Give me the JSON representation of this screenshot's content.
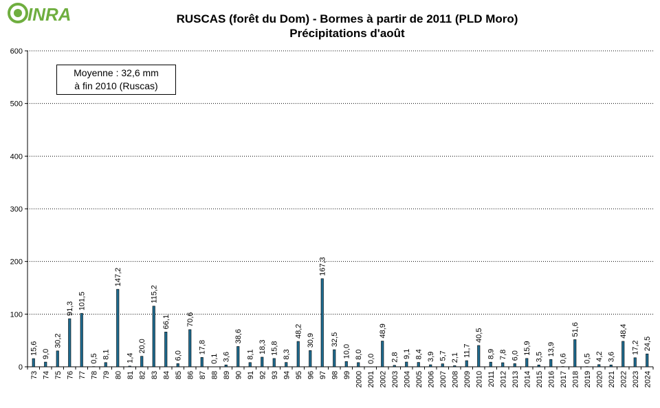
{
  "logo": {
    "text": "INRA",
    "colors": {
      "green": "#6fae3f",
      "dark": "#2b6a2f"
    }
  },
  "title_line1": "RUSCAS (forêt du Dom) - Bormes à partir de 2011 (PLD Moro)",
  "title_line2": "Précipitations d'août",
  "annotation": {
    "line1": "Moyenne : 32,6 mm",
    "line2": "à fin 2010 (Ruscas)"
  },
  "colors": {
    "bar_fill": "#1f6b8f",
    "bar_stroke": "#000000",
    "grid": "#000000"
  },
  "chart_data": {
    "type": "bar",
    "title": "RUSCAS (forêt du Dom) - Bormes à partir de 2011 (PLD Moro) / Précipitations d'août",
    "xlabel": "",
    "ylabel": "",
    "ylim": [
      0,
      600
    ],
    "yticks": [
      "0",
      "100",
      "200",
      "300",
      "400",
      "500",
      "600"
    ],
    "grid": true,
    "categories": [
      "73",
      "74",
      "75",
      "76",
      "77",
      "78",
      "79",
      "80",
      "81",
      "82",
      "83",
      "84",
      "85",
      "86",
      "87",
      "88",
      "89",
      "90",
      "91",
      "92",
      "93",
      "94",
      "95",
      "96",
      "97",
      "98",
      "99",
      "2000",
      "2001",
      "2002",
      "2003",
      "2004",
      "2005",
      "2006",
      "2007",
      "2008",
      "2009",
      "2010",
      "2011",
      "2012",
      "2013",
      "2014",
      "2015",
      "2016",
      "2017",
      "2018",
      "2019",
      "2020",
      "2021",
      "2022",
      "2023",
      "2024"
    ],
    "values": [
      15.6,
      9.0,
      30.2,
      91.3,
      101.5,
      0.5,
      8.1,
      147.2,
      1.4,
      20.0,
      115.2,
      66.1,
      6.0,
      70.6,
      17.8,
      0.1,
      3.6,
      38.6,
      8.1,
      18.3,
      15.8,
      8.3,
      48.2,
      30.9,
      167.3,
      32.5,
      10.0,
      8.0,
      0.0,
      48.9,
      2.8,
      9.1,
      8.4,
      3.9,
      5.7,
      2.1,
      11.7,
      40.5,
      8.9,
      7.8,
      6.0,
      15.9,
      3.5,
      13.9,
      0.6,
      51.6,
      0.5,
      4.2,
      3.6,
      48.4,
      17.2,
      24.5
    ],
    "labels": [
      "15,6",
      "9,0",
      "30,2",
      "91,3",
      "101,5",
      "0,5",
      "8,1",
      "147,2",
      "1,4",
      "20,0",
      "115,2",
      "66,1",
      "6,0",
      "70,6",
      "17,8",
      "0,1",
      "3,6",
      "38,6",
      "8,1",
      "18,3",
      "15,8",
      "8,3",
      "48,2",
      "30,9",
      "167,3",
      "32,5",
      "10,0",
      "8,0",
      "0,0",
      "48,9",
      "2,8",
      "9,1",
      "8,4",
      "3,9",
      "5,7",
      "2,1",
      "11,7",
      "40,5",
      "8,9",
      "7,8",
      "6,0",
      "15,9",
      "3,5",
      "13,9",
      "0,6",
      "51,6",
      "0,5",
      "4,2",
      "3,6",
      "48,4",
      "17,2",
      "24,5"
    ]
  }
}
